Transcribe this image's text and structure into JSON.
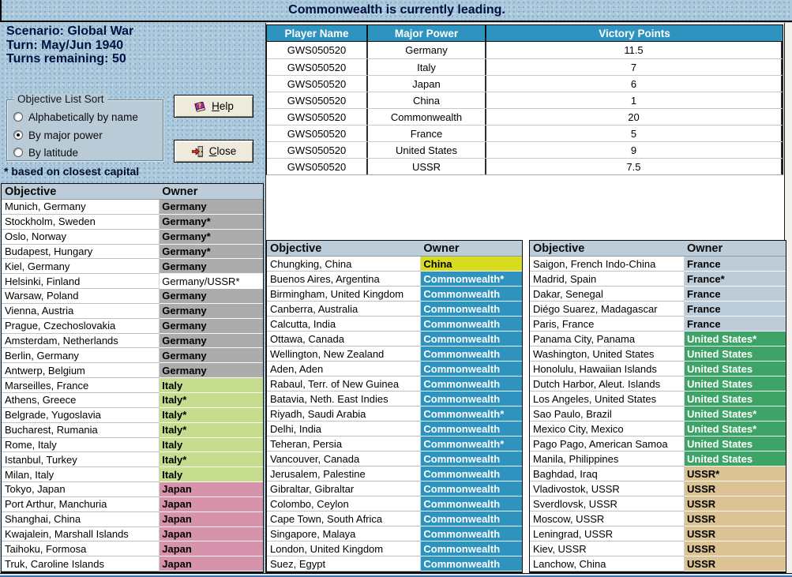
{
  "banner": {
    "text": "Commonwealth is currently leading."
  },
  "scenario_info": {
    "lines": [
      "Scenario: Global War",
      "Turn: May/Jun 1940",
      "Turns remaining: 50"
    ]
  },
  "sort_box": {
    "title": "Objective List Sort",
    "options": [
      {
        "label": "Alphabetically by name",
        "selected": false
      },
      {
        "label": "By major power",
        "selected": true
      },
      {
        "label": "By latitude",
        "selected": false
      }
    ]
  },
  "footnote": "* based on closest capital",
  "buttons": {
    "help": "Help",
    "close": "Close"
  },
  "players_table": {
    "headers": [
      "Player Name",
      "Major Power",
      "Victory Points"
    ],
    "rows": [
      [
        "GWS050520",
        "Germany",
        "11.5"
      ],
      [
        "GWS050520",
        "Italy",
        "7"
      ],
      [
        "GWS050520",
        "Japan",
        "6"
      ],
      [
        "GWS050520",
        "China",
        "1"
      ],
      [
        "GWS050520",
        "Commonwealth",
        "20"
      ],
      [
        "GWS050520",
        "France",
        "5"
      ],
      [
        "GWS050520",
        "United States",
        "9"
      ],
      [
        "GWS050520",
        "USSR",
        "7.5"
      ]
    ]
  },
  "objective_tables": {
    "headers": [
      "Objective",
      "Owner"
    ],
    "left": [
      {
        "objective": "Munich, Germany",
        "owner": "Germany",
        "power": "germany"
      },
      {
        "objective": "Stockholm, Sweden",
        "owner": "Germany*",
        "power": "germany"
      },
      {
        "objective": "Oslo, Norway",
        "owner": "Germany*",
        "power": "germany"
      },
      {
        "objective": "Budapest, Hungary",
        "owner": "Germany*",
        "power": "germany"
      },
      {
        "objective": "Kiel, Germany",
        "owner": "Germany",
        "power": "germany"
      },
      {
        "objective": "Helsinki, Finland",
        "owner": "Germany/USSR*",
        "power": "shared"
      },
      {
        "objective": "Warsaw, Poland",
        "owner": "Germany",
        "power": "germany"
      },
      {
        "objective": "Vienna, Austria",
        "owner": "Germany",
        "power": "germany"
      },
      {
        "objective": "Prague, Czechoslovakia",
        "owner": "Germany",
        "power": "germany"
      },
      {
        "objective": "Amsterdam, Netherlands",
        "owner": "Germany",
        "power": "germany"
      },
      {
        "objective": "Berlin, Germany",
        "owner": "Germany",
        "power": "germany"
      },
      {
        "objective": "Antwerp, Belgium",
        "owner": "Germany",
        "power": "germany"
      },
      {
        "objective": "Marseilles, France",
        "owner": "Italy",
        "power": "italy"
      },
      {
        "objective": "Athens, Greece",
        "owner": "Italy*",
        "power": "italy"
      },
      {
        "objective": "Belgrade, Yugoslavia",
        "owner": "Italy*",
        "power": "italy"
      },
      {
        "objective": "Bucharest, Rumania",
        "owner": "Italy*",
        "power": "italy"
      },
      {
        "objective": "Rome, Italy",
        "owner": "Italy",
        "power": "italy"
      },
      {
        "objective": "Istanbul, Turkey",
        "owner": "Italy*",
        "power": "italy"
      },
      {
        "objective": "Milan, Italy",
        "owner": "Italy",
        "power": "italy"
      },
      {
        "objective": "Tokyo, Japan",
        "owner": "Japan",
        "power": "japan"
      },
      {
        "objective": "Port Arthur, Manchuria",
        "owner": "Japan",
        "power": "japan"
      },
      {
        "objective": "Shanghai, China",
        "owner": "Japan",
        "power": "japan"
      },
      {
        "objective": "Kwajalein, Marshall Islands",
        "owner": "Japan",
        "power": "japan"
      },
      {
        "objective": "Taihoku, Formosa",
        "owner": "Japan",
        "power": "japan"
      },
      {
        "objective": "Truk, Caroline Islands",
        "owner": "Japan",
        "power": "japan"
      }
    ],
    "middle": [
      {
        "objective": "Chungking, China",
        "owner": "China",
        "power": "china"
      },
      {
        "objective": "Buenos Aires, Argentina",
        "owner": "Commonwealth*",
        "power": "commonwealth"
      },
      {
        "objective": "Birmingham, United Kingdom",
        "owner": "Commonwealth",
        "power": "commonwealth"
      },
      {
        "objective": "Canberra, Australia",
        "owner": "Commonwealth",
        "power": "commonwealth"
      },
      {
        "objective": "Calcutta, India",
        "owner": "Commonwealth",
        "power": "commonwealth"
      },
      {
        "objective": "Ottawa, Canada",
        "owner": "Commonwealth",
        "power": "commonwealth"
      },
      {
        "objective": "Wellington, New Zealand",
        "owner": "Commonwealth",
        "power": "commonwealth"
      },
      {
        "objective": "Aden, Aden",
        "owner": "Commonwealth",
        "power": "commonwealth"
      },
      {
        "objective": "Rabaul, Terr. of New Guinea",
        "owner": "Commonwealth",
        "power": "commonwealth"
      },
      {
        "objective": "Batavia, Neth. East Indies",
        "owner": "Commonwealth",
        "power": "commonwealth"
      },
      {
        "objective": "Riyadh, Saudi Arabia",
        "owner": "Commonwealth*",
        "power": "commonwealth"
      },
      {
        "objective": "Delhi, India",
        "owner": "Commonwealth",
        "power": "commonwealth"
      },
      {
        "objective": "Teheran, Persia",
        "owner": "Commonwealth*",
        "power": "commonwealth"
      },
      {
        "objective": "Vancouver, Canada",
        "owner": "Commonwealth",
        "power": "commonwealth"
      },
      {
        "objective": "Jerusalem, Palestine",
        "owner": "Commonwealth",
        "power": "commonwealth"
      },
      {
        "objective": "Gibraltar, Gibraltar",
        "owner": "Commonwealth",
        "power": "commonwealth"
      },
      {
        "objective": "Colombo, Ceylon",
        "owner": "Commonwealth",
        "power": "commonwealth"
      },
      {
        "objective": "Cape Town, South Africa",
        "owner": "Commonwealth",
        "power": "commonwealth"
      },
      {
        "objective": "Singapore, Malaya",
        "owner": "Commonwealth",
        "power": "commonwealth"
      },
      {
        "objective": "London, United Kingdom",
        "owner": "Commonwealth",
        "power": "commonwealth"
      },
      {
        "objective": "Suez, Egypt",
        "owner": "Commonwealth",
        "power": "commonwealth"
      }
    ],
    "right": [
      {
        "objective": "Saigon, French Indo-China",
        "owner": "France",
        "power": "france"
      },
      {
        "objective": "Madrid, Spain",
        "owner": "France*",
        "power": "france"
      },
      {
        "objective": "Dakar, Senegal",
        "owner": "France",
        "power": "france"
      },
      {
        "objective": "Diégo Suarez, Madagascar",
        "owner": "France",
        "power": "france"
      },
      {
        "objective": "Paris, France",
        "owner": "France",
        "power": "france"
      },
      {
        "objective": "Panama City, Panama",
        "owner": "United States*",
        "power": "united_states"
      },
      {
        "objective": "Washington, United States",
        "owner": "United States",
        "power": "united_states"
      },
      {
        "objective": "Honolulu, Hawaiian Islands",
        "owner": "United States",
        "power": "united_states"
      },
      {
        "objective": "Dutch Harbor, Aleut. Islands",
        "owner": "United States",
        "power": "united_states"
      },
      {
        "objective": "Los Angeles, United States",
        "owner": "United States",
        "power": "united_states"
      },
      {
        "objective": "Sao Paulo, Brazil",
        "owner": "United States*",
        "power": "united_states"
      },
      {
        "objective": "Mexico City, Mexico",
        "owner": "United States*",
        "power": "united_states"
      },
      {
        "objective": "Pago Pago, American Samoa",
        "owner": "United States",
        "power": "united_states"
      },
      {
        "objective": "Manila, Philippines",
        "owner": "United States",
        "power": "united_states"
      },
      {
        "objective": "Baghdad, Iraq",
        "owner": "USSR*",
        "power": "ussr"
      },
      {
        "objective": "Vladivostok, USSR",
        "owner": "USSR",
        "power": "ussr"
      },
      {
        "objective": "Sverdlovsk, USSR",
        "owner": "USSR",
        "power": "ussr"
      },
      {
        "objective": "Moscow, USSR",
        "owner": "USSR",
        "power": "ussr"
      },
      {
        "objective": "Leningrad, USSR",
        "owner": "USSR",
        "power": "ussr"
      },
      {
        "objective": "Kiev, USSR",
        "owner": "USSR",
        "power": "ussr"
      },
      {
        "objective": "Lanchow, China",
        "owner": "USSR",
        "power": "ussr"
      }
    ]
  },
  "power_styles": {
    "germany": {
      "bg": "#ACACAC",
      "fg": "#000000",
      "bold": true
    },
    "shared": {
      "bg": "#FFFFFF",
      "fg": "#000000",
      "bold": false
    },
    "italy": {
      "bg": "#C6DC8E",
      "fg": "#000000",
      "bold": true
    },
    "japan": {
      "bg": "#D793AC",
      "fg": "#000000",
      "bold": true
    },
    "china": {
      "bg": "#D8DB1E",
      "fg": "#000000",
      "bold": true
    },
    "commonwealth": {
      "bg": "#2E93BE",
      "fg": "#FFFFFF",
      "bold": true
    },
    "france": {
      "bg": "#BCCDD9",
      "fg": "#000000",
      "bold": true
    },
    "united_states": {
      "bg": "#3EA366",
      "fg": "#FFFFFF",
      "bold": true
    },
    "ussr": {
      "bg": "#DBC393",
      "fg": "#000000",
      "bold": true
    }
  },
  "ui_colors": {
    "table_header_blue": "#2E93BE",
    "panel_steel": "#BCCDD9",
    "background_blue": "#AECADD",
    "title_text_navy": "#001040"
  }
}
